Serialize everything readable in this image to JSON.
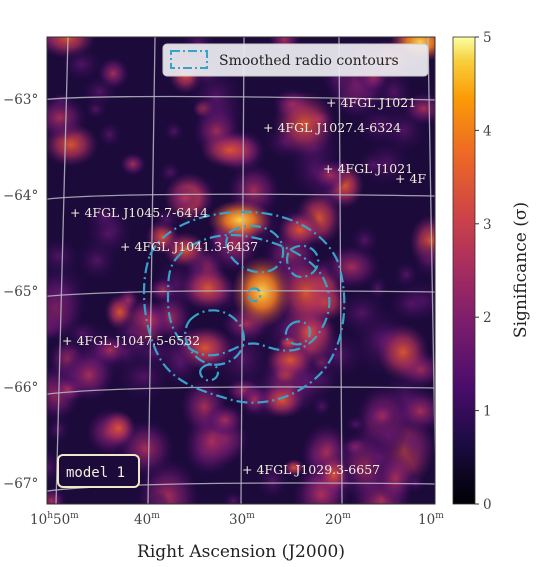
{
  "chart_data": {
    "type": "heatmap",
    "title": "",
    "xlabel": "Right Ascension (J2000)",
    "ylabel": "",
    "x_ticks": [
      {
        "label": "10",
        "sup_h": "h",
        "rest": "50",
        "sup_m": "m"
      },
      {
        "label": "40",
        "sup_m": "m"
      },
      {
        "label": "30",
        "sup_m": "m"
      },
      {
        "label": "20",
        "sup_m": "m"
      },
      {
        "label": "10",
        "sup_m": "m"
      }
    ],
    "y_ticks": [
      "−63°",
      "−64°",
      "−65°",
      "−66°",
      "−67°"
    ],
    "colorbar": {
      "label": "Significance (σ)",
      "min": 0,
      "max": 5,
      "ticks": [
        "0",
        "1",
        "2",
        "3",
        "4",
        "5"
      ],
      "colormap": "inferno"
    },
    "legend": {
      "entry": "Smoothed radio contours",
      "location": "top-right",
      "color": "#38a3c9"
    },
    "model_label": "model 1",
    "sources": [
      "+ 4FGL J1021",
      "+ 4FGL J1027.4-6324",
      "+ 4FGL J1021",
      "+ 4F",
      "+ 4FGL J1045.7-6414",
      "+ 4FGL J1041.3-6437",
      "+ 4FGL J1047.5-6532",
      "+ 4FGL J1029.3-6657"
    ],
    "grid": true
  }
}
